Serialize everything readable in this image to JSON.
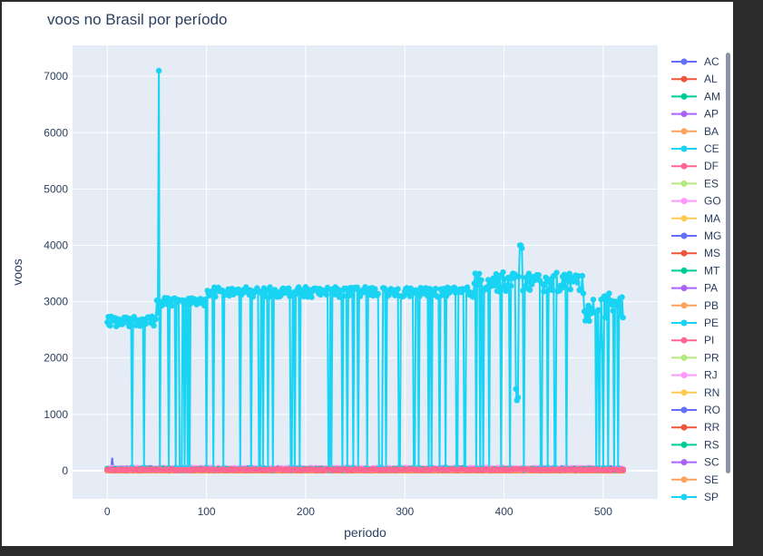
{
  "colors": {
    "window_bg": "#2b2b2b",
    "card_bg": "#ffffff",
    "plot_bg": "#e5ecf6",
    "grid": "#ffffff",
    "text": "#2a3f5f",
    "scrollbar_thumb": "#8a94a6"
  },
  "chart_data": {
    "type": "line",
    "title": "voos no Brasil por período",
    "xlabel": "periodo",
    "ylabel": "voos",
    "xlim": [
      -35,
      555
    ],
    "ylim": [
      -500,
      7550
    ],
    "xticks": [
      0,
      100,
      200,
      300,
      400,
      500
    ],
    "yticks": [
      0,
      1000,
      2000,
      3000,
      4000,
      5000,
      6000,
      7000
    ],
    "grid": true,
    "markers": true,
    "legend_position": "right",
    "legend_scrollable": true,
    "series": [
      {
        "name": "AC",
        "color": "#636efa",
        "baseline": 8
      },
      {
        "name": "AL",
        "color": "#ef553b",
        "baseline": 10
      },
      {
        "name": "AM",
        "color": "#00cc96",
        "baseline": 14
      },
      {
        "name": "AP",
        "color": "#ab63fa",
        "baseline": 6
      },
      {
        "name": "BA",
        "color": "#ffa15a",
        "baseline": 30
      },
      {
        "name": "CE",
        "color": "#19d3f3",
        "baseline": 22
      },
      {
        "name": "DF",
        "color": "#ff6692",
        "baseline": 20
      },
      {
        "name": "ES",
        "color": "#b6e880",
        "baseline": 12
      },
      {
        "name": "GO",
        "color": "#ff97ff",
        "baseline": 10
      },
      {
        "name": "MA",
        "color": "#fecb52",
        "baseline": 25
      },
      {
        "name": "MG",
        "color": "#636efa",
        "baseline": 35
      },
      {
        "name": "MS",
        "color": "#ef553b",
        "baseline": 8
      },
      {
        "name": "MT",
        "color": "#00cc96",
        "baseline": 10
      },
      {
        "name": "PA",
        "color": "#ab63fa",
        "baseline": 18
      },
      {
        "name": "PB",
        "color": "#ffa15a",
        "baseline": 8
      },
      {
        "name": "PE",
        "color": "#19d3f3",
        "baseline": 28
      },
      {
        "name": "PI",
        "color": "#ff6692",
        "baseline": 6
      },
      {
        "name": "PR",
        "color": "#b6e880",
        "baseline": 24
      },
      {
        "name": "RJ",
        "color": "#ff97ff",
        "baseline": 40
      },
      {
        "name": "RN",
        "color": "#fecb52",
        "baseline": 10
      },
      {
        "name": "RO",
        "color": "#636efa",
        "baseline": 6
      },
      {
        "name": "RR",
        "color": "#ef553b",
        "baseline": 4
      },
      {
        "name": "RS",
        "color": "#00cc96",
        "baseline": 26
      },
      {
        "name": "SC",
        "color": "#ab63fa",
        "baseline": 14
      },
      {
        "name": "SE",
        "color": "#ffa15a",
        "baseline": 6
      },
      {
        "name": "SP",
        "color": "#19d3f3",
        "baseline": 3000
      }
    ]
  }
}
